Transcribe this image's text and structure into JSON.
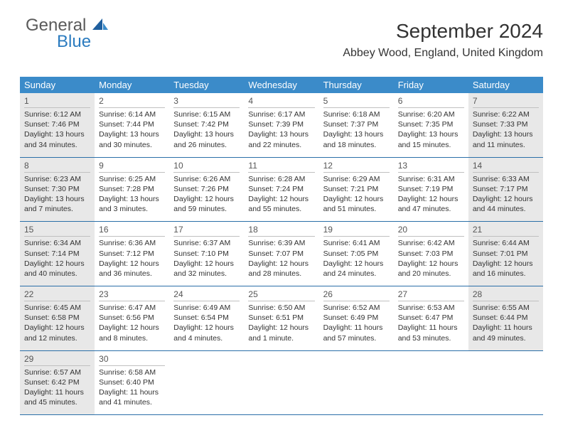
{
  "logo": {
    "text_general": "General",
    "text_blue": "Blue",
    "sail_color_dark": "#1f5f9e",
    "sail_color_light": "#3b8bc9"
  },
  "header": {
    "month_title": "September 2024",
    "location": "Abbey Wood, England, United Kingdom"
  },
  "colors": {
    "header_bg": "#3b8bc9",
    "header_text": "#ffffff",
    "cell_border": "#2b6fa8",
    "shaded_bg": "#e8e8e8",
    "text": "#333333",
    "logo_gray": "#5a5a5a",
    "logo_blue": "#2b7bbf"
  },
  "day_names": [
    "Sunday",
    "Monday",
    "Tuesday",
    "Wednesday",
    "Thursday",
    "Friday",
    "Saturday"
  ],
  "weeks": [
    [
      {
        "num": "1",
        "shaded": true,
        "sunrise": "Sunrise: 6:12 AM",
        "sunset": "Sunset: 7:46 PM",
        "daylight1": "Daylight: 13 hours",
        "daylight2": "and 34 minutes."
      },
      {
        "num": "2",
        "shaded": false,
        "sunrise": "Sunrise: 6:14 AM",
        "sunset": "Sunset: 7:44 PM",
        "daylight1": "Daylight: 13 hours",
        "daylight2": "and 30 minutes."
      },
      {
        "num": "3",
        "shaded": false,
        "sunrise": "Sunrise: 6:15 AM",
        "sunset": "Sunset: 7:42 PM",
        "daylight1": "Daylight: 13 hours",
        "daylight2": "and 26 minutes."
      },
      {
        "num": "4",
        "shaded": false,
        "sunrise": "Sunrise: 6:17 AM",
        "sunset": "Sunset: 7:39 PM",
        "daylight1": "Daylight: 13 hours",
        "daylight2": "and 22 minutes."
      },
      {
        "num": "5",
        "shaded": false,
        "sunrise": "Sunrise: 6:18 AM",
        "sunset": "Sunset: 7:37 PM",
        "daylight1": "Daylight: 13 hours",
        "daylight2": "and 18 minutes."
      },
      {
        "num": "6",
        "shaded": false,
        "sunrise": "Sunrise: 6:20 AM",
        "sunset": "Sunset: 7:35 PM",
        "daylight1": "Daylight: 13 hours",
        "daylight2": "and 15 minutes."
      },
      {
        "num": "7",
        "shaded": true,
        "sunrise": "Sunrise: 6:22 AM",
        "sunset": "Sunset: 7:33 PM",
        "daylight1": "Daylight: 13 hours",
        "daylight2": "and 11 minutes."
      }
    ],
    [
      {
        "num": "8",
        "shaded": true,
        "sunrise": "Sunrise: 6:23 AM",
        "sunset": "Sunset: 7:30 PM",
        "daylight1": "Daylight: 13 hours",
        "daylight2": "and 7 minutes."
      },
      {
        "num": "9",
        "shaded": false,
        "sunrise": "Sunrise: 6:25 AM",
        "sunset": "Sunset: 7:28 PM",
        "daylight1": "Daylight: 13 hours",
        "daylight2": "and 3 minutes."
      },
      {
        "num": "10",
        "shaded": false,
        "sunrise": "Sunrise: 6:26 AM",
        "sunset": "Sunset: 7:26 PM",
        "daylight1": "Daylight: 12 hours",
        "daylight2": "and 59 minutes."
      },
      {
        "num": "11",
        "shaded": false,
        "sunrise": "Sunrise: 6:28 AM",
        "sunset": "Sunset: 7:24 PM",
        "daylight1": "Daylight: 12 hours",
        "daylight2": "and 55 minutes."
      },
      {
        "num": "12",
        "shaded": false,
        "sunrise": "Sunrise: 6:29 AM",
        "sunset": "Sunset: 7:21 PM",
        "daylight1": "Daylight: 12 hours",
        "daylight2": "and 51 minutes."
      },
      {
        "num": "13",
        "shaded": false,
        "sunrise": "Sunrise: 6:31 AM",
        "sunset": "Sunset: 7:19 PM",
        "daylight1": "Daylight: 12 hours",
        "daylight2": "and 47 minutes."
      },
      {
        "num": "14",
        "shaded": true,
        "sunrise": "Sunrise: 6:33 AM",
        "sunset": "Sunset: 7:17 PM",
        "daylight1": "Daylight: 12 hours",
        "daylight2": "and 44 minutes."
      }
    ],
    [
      {
        "num": "15",
        "shaded": true,
        "sunrise": "Sunrise: 6:34 AM",
        "sunset": "Sunset: 7:14 PM",
        "daylight1": "Daylight: 12 hours",
        "daylight2": "and 40 minutes."
      },
      {
        "num": "16",
        "shaded": false,
        "sunrise": "Sunrise: 6:36 AM",
        "sunset": "Sunset: 7:12 PM",
        "daylight1": "Daylight: 12 hours",
        "daylight2": "and 36 minutes."
      },
      {
        "num": "17",
        "shaded": false,
        "sunrise": "Sunrise: 6:37 AM",
        "sunset": "Sunset: 7:10 PM",
        "daylight1": "Daylight: 12 hours",
        "daylight2": "and 32 minutes."
      },
      {
        "num": "18",
        "shaded": false,
        "sunrise": "Sunrise: 6:39 AM",
        "sunset": "Sunset: 7:07 PM",
        "daylight1": "Daylight: 12 hours",
        "daylight2": "and 28 minutes."
      },
      {
        "num": "19",
        "shaded": false,
        "sunrise": "Sunrise: 6:41 AM",
        "sunset": "Sunset: 7:05 PM",
        "daylight1": "Daylight: 12 hours",
        "daylight2": "and 24 minutes."
      },
      {
        "num": "20",
        "shaded": false,
        "sunrise": "Sunrise: 6:42 AM",
        "sunset": "Sunset: 7:03 PM",
        "daylight1": "Daylight: 12 hours",
        "daylight2": "and 20 minutes."
      },
      {
        "num": "21",
        "shaded": true,
        "sunrise": "Sunrise: 6:44 AM",
        "sunset": "Sunset: 7:01 PM",
        "daylight1": "Daylight: 12 hours",
        "daylight2": "and 16 minutes."
      }
    ],
    [
      {
        "num": "22",
        "shaded": true,
        "sunrise": "Sunrise: 6:45 AM",
        "sunset": "Sunset: 6:58 PM",
        "daylight1": "Daylight: 12 hours",
        "daylight2": "and 12 minutes."
      },
      {
        "num": "23",
        "shaded": false,
        "sunrise": "Sunrise: 6:47 AM",
        "sunset": "Sunset: 6:56 PM",
        "daylight1": "Daylight: 12 hours",
        "daylight2": "and 8 minutes."
      },
      {
        "num": "24",
        "shaded": false,
        "sunrise": "Sunrise: 6:49 AM",
        "sunset": "Sunset: 6:54 PM",
        "daylight1": "Daylight: 12 hours",
        "daylight2": "and 4 minutes."
      },
      {
        "num": "25",
        "shaded": false,
        "sunrise": "Sunrise: 6:50 AM",
        "sunset": "Sunset: 6:51 PM",
        "daylight1": "Daylight: 12 hours",
        "daylight2": "and 1 minute."
      },
      {
        "num": "26",
        "shaded": false,
        "sunrise": "Sunrise: 6:52 AM",
        "sunset": "Sunset: 6:49 PM",
        "daylight1": "Daylight: 11 hours",
        "daylight2": "and 57 minutes."
      },
      {
        "num": "27",
        "shaded": false,
        "sunrise": "Sunrise: 6:53 AM",
        "sunset": "Sunset: 6:47 PM",
        "daylight1": "Daylight: 11 hours",
        "daylight2": "and 53 minutes."
      },
      {
        "num": "28",
        "shaded": true,
        "sunrise": "Sunrise: 6:55 AM",
        "sunset": "Sunset: 6:44 PM",
        "daylight1": "Daylight: 11 hours",
        "daylight2": "and 49 minutes."
      }
    ],
    [
      {
        "num": "29",
        "shaded": true,
        "sunrise": "Sunrise: 6:57 AM",
        "sunset": "Sunset: 6:42 PM",
        "daylight1": "Daylight: 11 hours",
        "daylight2": "and 45 minutes."
      },
      {
        "num": "30",
        "shaded": false,
        "sunrise": "Sunrise: 6:58 AM",
        "sunset": "Sunset: 6:40 PM",
        "daylight1": "Daylight: 11 hours",
        "daylight2": "and 41 minutes."
      },
      {
        "empty": true
      },
      {
        "empty": true
      },
      {
        "empty": true
      },
      {
        "empty": true
      },
      {
        "empty": true
      }
    ]
  ]
}
